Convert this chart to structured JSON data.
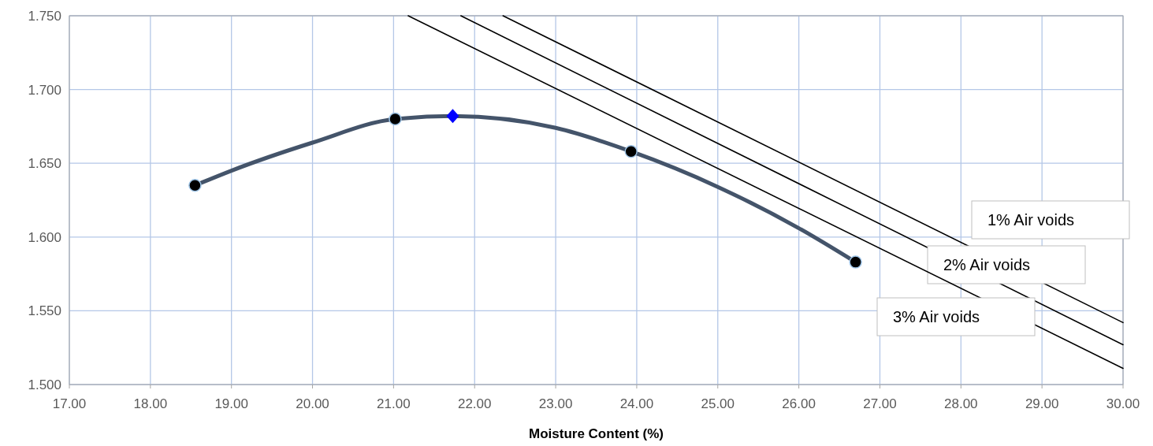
{
  "chart_data": {
    "type": "scatter",
    "xlabel": "Moisture Content (%)",
    "xlim": [
      17,
      30
    ],
    "xticks": [
      {
        "value": 17,
        "label": "17.00"
      },
      {
        "value": 18,
        "label": "18.00"
      },
      {
        "value": 19,
        "label": "19.00"
      },
      {
        "value": 20,
        "label": "20.00"
      },
      {
        "value": 21,
        "label": "21.00"
      },
      {
        "value": 22,
        "label": "22.00"
      },
      {
        "value": 23,
        "label": "23.00"
      },
      {
        "value": 24,
        "label": "24.00"
      },
      {
        "value": 25,
        "label": "25.00"
      },
      {
        "value": 26,
        "label": "26.00"
      },
      {
        "value": 27,
        "label": "27.00"
      },
      {
        "value": 28,
        "label": "28.00"
      },
      {
        "value": 29,
        "label": "29.00"
      },
      {
        "value": 30,
        "label": "30.00"
      }
    ],
    "ylim": [
      1.5,
      1.75
    ],
    "yticks": [
      {
        "value": 1.5,
        "label": "1.500"
      },
      {
        "value": 1.55,
        "label": "1.550"
      },
      {
        "value": 1.6,
        "label": "1.600"
      },
      {
        "value": 1.65,
        "label": "1.650"
      },
      {
        "value": 1.7,
        "label": "1.700"
      },
      {
        "value": 1.75,
        "label": "1.750"
      }
    ],
    "grid": true,
    "series": [
      {
        "type": "line",
        "color": "#44546a",
        "marker": "none",
        "x": [
          18.55,
          19,
          20,
          21.02,
          21.73,
          23,
          23.93,
          25,
          26,
          26.7
        ],
        "values": [
          1.635,
          1.645,
          1.664,
          1.68,
          1.682,
          1.674,
          1.658,
          1.634,
          1.606,
          1.583
        ]
      },
      {
        "color": "#000000",
        "marker": "circle",
        "x": [
          18.55,
          21.02,
          23.93,
          26.7
        ],
        "values": [
          1.635,
          1.68,
          1.658,
          1.583
        ]
      },
      {
        "color": "#0000ff",
        "marker": "diamond",
        "x": [
          21.73
        ],
        "values": [
          1.682
        ]
      },
      {
        "type": "line",
        "name": "1% Air voids",
        "color": "#000000",
        "marker": "none",
        "x": [
          22.35,
          30
        ],
        "values": [
          1.75,
          1.542
        ]
      },
      {
        "type": "line",
        "name": "2% Air voids",
        "color": "#000000",
        "marker": "none",
        "x": [
          21.83,
          30
        ],
        "values": [
          1.75,
          1.527
        ]
      },
      {
        "type": "line",
        "name": "3% Air voids",
        "color": "#000000",
        "marker": "none",
        "x": [
          21.18,
          30
        ],
        "values": [
          1.75,
          1.511
        ]
      }
    ]
  }
}
